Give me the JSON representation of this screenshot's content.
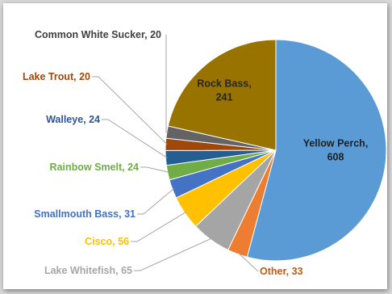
{
  "chart_data": {
    "type": "pie",
    "title": "",
    "categories": [
      "Yellow Perch",
      "Other",
      "Lake Whitefish",
      "Cisco",
      "Smallmouth Bass",
      "Rainbow Smelt",
      "Walleye",
      "Lake Trout",
      "Common White Sucker",
      "Rock Bass"
    ],
    "values": [
      608,
      33,
      65,
      56,
      31,
      24,
      24,
      20,
      20,
      241
    ],
    "labels": [
      "Yellow Perch, 608",
      "Other, 33",
      "Lake Whitefish, 65",
      "Cisco, 56",
      "Smallmouth Bass, 31",
      "Rainbow Smelt, 24",
      "Walleye, 24",
      "Lake Trout, 20",
      "Common White Sucker, 20",
      "Rock Bass, 241"
    ],
    "colors": [
      "#5b9bd5",
      "#ed7d31",
      "#a5a5a5",
      "#ffc000",
      "#4472c4",
      "#70ad47",
      "#255e91",
      "#9e480e",
      "#636363",
      "#997300"
    ],
    "label_colors": [
      "#1f1f1f",
      "#c55a11",
      "#a6a6a6",
      "#ffc000",
      "#4472c4",
      "#70ad47",
      "#2f5597",
      "#9e480e",
      "#404040",
      "#262626"
    ],
    "start_angle_deg": 0,
    "direction": "clockwise",
    "legend": "none"
  }
}
